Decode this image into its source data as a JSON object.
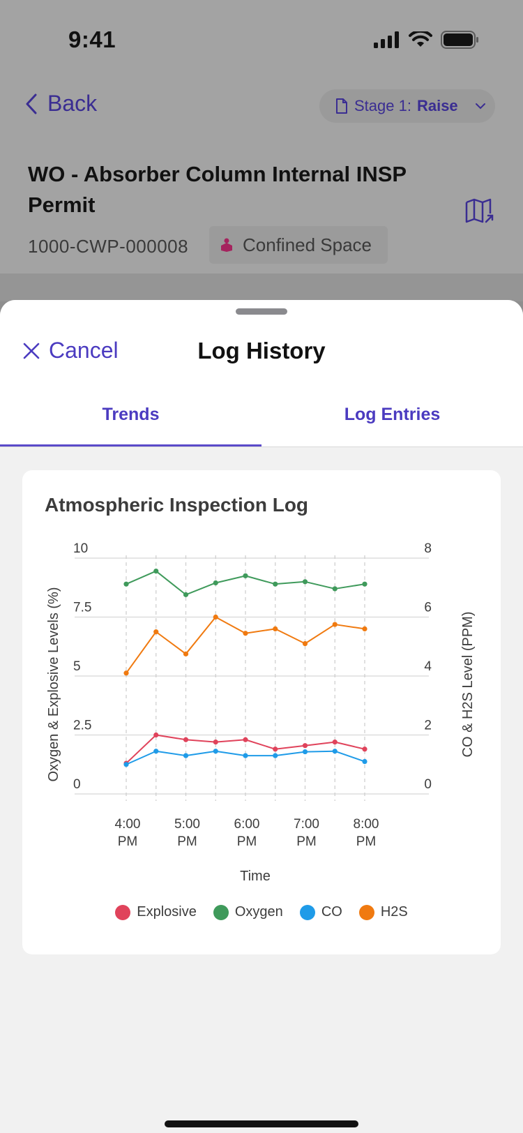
{
  "status_bar": {
    "time": "9:41"
  },
  "nav": {
    "back_label": "Back",
    "stage_label": "Stage 1:",
    "stage_value": "Raise"
  },
  "work_order": {
    "title": "WO - Absorber Column Internal INSP Permit",
    "permit_number": "1000-CWP-000008",
    "permit_type": "Confined Space"
  },
  "sheet": {
    "cancel_label": "Cancel",
    "title": "Log History",
    "tabs": [
      {
        "label": "Trends",
        "active": true
      },
      {
        "label": "Log Entries",
        "active": false
      }
    ]
  },
  "colors": {
    "accent": "#4b3bc0",
    "explosive": "#e0435b",
    "oxygen": "#3f9a5b",
    "co": "#1f9be8",
    "h2s": "#f07a10"
  },
  "chart_data": {
    "type": "line",
    "title": "Atmospheric Inspection Log",
    "xlabel": "Time",
    "ylabel_left": "Oxygen & Explosive Levels (%)",
    "ylabel_right": "CO & H2S Level (PPM)",
    "x_tick_labels": [
      {
        "line1": "4:00",
        "line2": "PM"
      },
      {
        "line1": "5:00",
        "line2": "PM"
      },
      {
        "line1": "6:00",
        "line2": "PM"
      },
      {
        "line1": "7:00",
        "line2": "PM"
      },
      {
        "line1": "8:00",
        "line2": "PM"
      }
    ],
    "x": [
      "4:00 PM",
      "4:30 PM",
      "5:00 PM",
      "5:30 PM",
      "6:00 PM",
      "6:30 PM",
      "7:00 PM",
      "7:30 PM",
      "8:00 PM"
    ],
    "y_left_ticks": [
      "0",
      "2.5",
      "5",
      "7.5",
      "10"
    ],
    "y_right_ticks": [
      "0",
      "2",
      "4",
      "6",
      "8"
    ],
    "ylim_left": [
      0,
      10
    ],
    "ylim_right": [
      0,
      8
    ],
    "grid": true,
    "legend_position": "bottom",
    "series": [
      {
        "name": "Explosive",
        "axis": "left",
        "color": "#e0435b",
        "values": [
          1.3,
          2.5,
          2.3,
          2.2,
          2.3,
          1.9,
          2.05,
          2.2,
          1.9
        ]
      },
      {
        "name": "Oxygen",
        "axis": "left",
        "color": "#3f9a5b",
        "values": [
          8.9,
          9.45,
          8.45,
          8.95,
          9.25,
          8.9,
          9.0,
          8.7,
          8.9
        ]
      },
      {
        "name": "CO",
        "axis": "right",
        "color": "#1f9be8",
        "values": [
          1.0,
          1.45,
          1.3,
          1.45,
          1.3,
          1.3,
          1.43,
          1.45,
          1.1
        ]
      },
      {
        "name": "H2S",
        "axis": "right",
        "color": "#f07a10",
        "values": [
          4.1,
          5.5,
          4.75,
          6.0,
          5.45,
          5.6,
          5.1,
          5.75,
          5.6
        ]
      }
    ]
  }
}
